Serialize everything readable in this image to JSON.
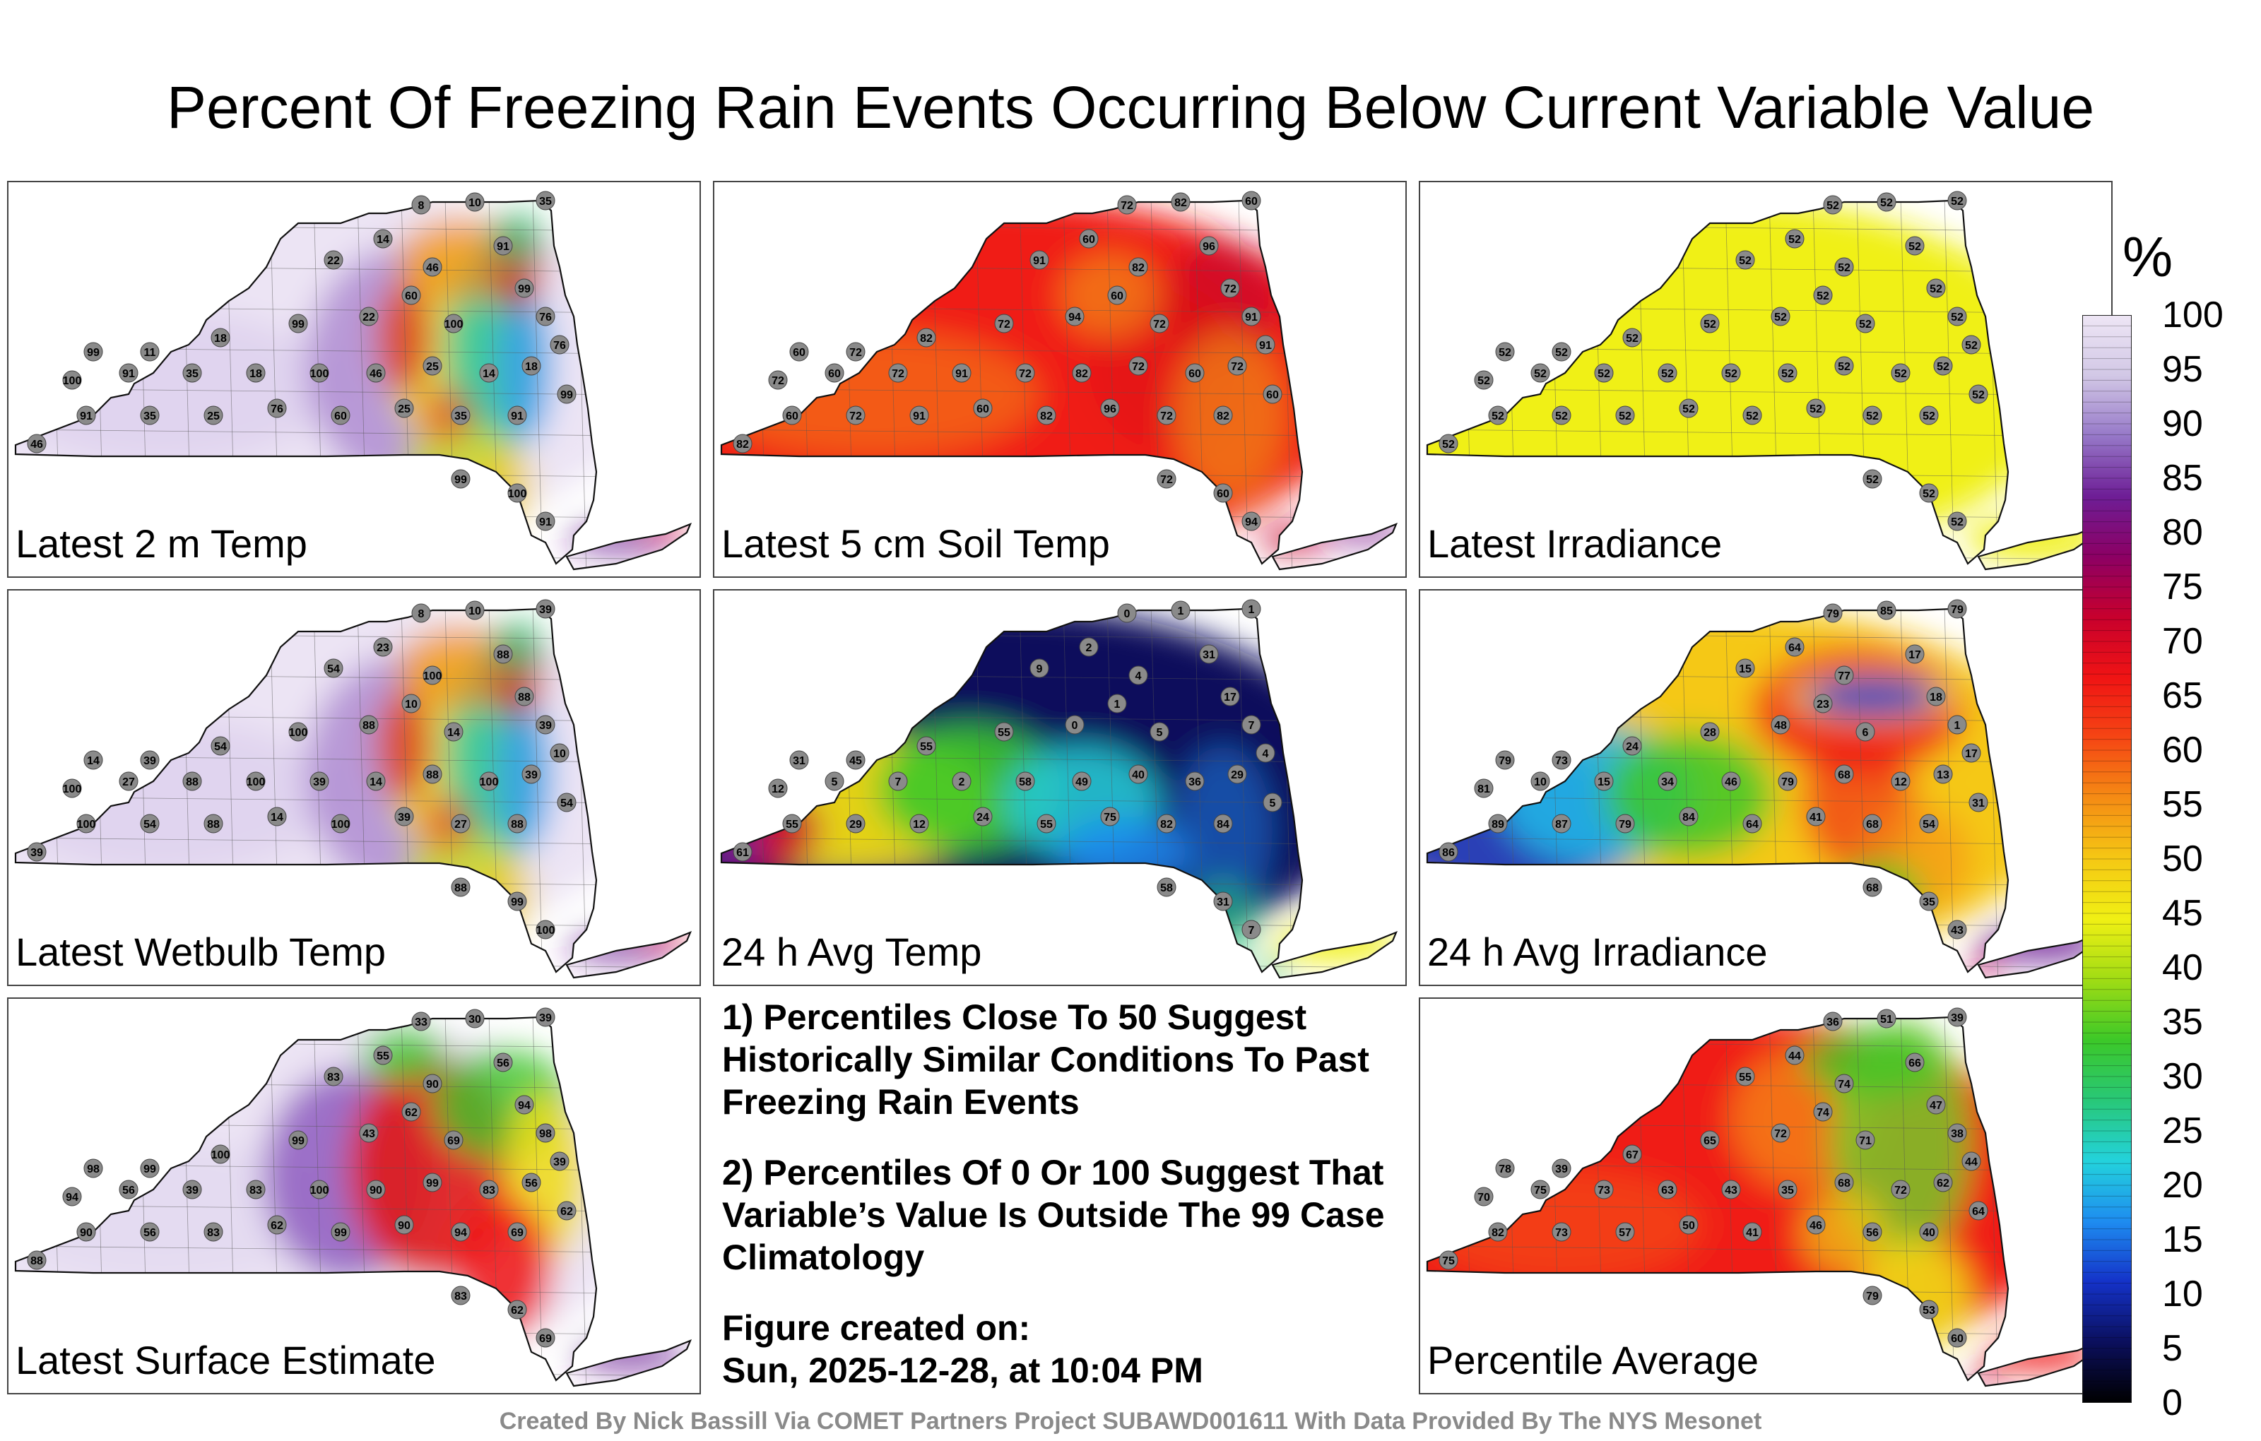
{
  "title": "Percent Of Freezing Rain Events Occurring Below Current Variable Value",
  "panels": [
    {
      "id": "t2m",
      "label": "Latest 2 m Temp",
      "scheme": "t2m",
      "stations": [
        "8",
        "10",
        "35",
        "14",
        "22",
        "46",
        "91",
        "99",
        "76",
        "100",
        "60",
        "22",
        "99",
        "18",
        "11",
        "99",
        "100",
        "91",
        "35",
        "18",
        "100",
        "46",
        "25",
        "14",
        "18",
        "76",
        "99",
        "91",
        "35",
        "25",
        "60",
        "76",
        "25",
        "35",
        "91",
        "46",
        "99",
        "100",
        "91"
      ]
    },
    {
      "id": "soil",
      "label": "Latest 5 cm Soil Temp",
      "scheme": "soil",
      "stations": [
        "72",
        "82",
        "60",
        "60",
        "91",
        "82",
        "96",
        "72",
        "91",
        "72",
        "60",
        "94",
        "72",
        "82",
        "72",
        "60",
        "72",
        "60",
        "72",
        "91",
        "72",
        "82",
        "72",
        "60",
        "72",
        "91",
        "60",
        "82",
        "72",
        "96",
        "82",
        "60",
        "91",
        "72",
        "60",
        "82",
        "72",
        "60",
        "94"
      ]
    },
    {
      "id": "irr",
      "label": "Latest Irradiance",
      "scheme": "irr",
      "stations": [
        "52",
        "52",
        "52",
        "52",
        "52",
        "52",
        "52",
        "52",
        "52",
        "52",
        "52",
        "52",
        "52",
        "52",
        "52",
        "52",
        "52",
        "52",
        "52",
        "52",
        "52",
        "52",
        "52",
        "52",
        "52",
        "52",
        "52",
        "52",
        "52",
        "52",
        "52",
        "52",
        "52",
        "52",
        "52",
        "52",
        "52",
        "52",
        "52"
      ]
    },
    {
      "id": "wb",
      "label": "Latest Wetbulb Temp",
      "scheme": "t2m",
      "stations": [
        "8",
        "10",
        "39",
        "23",
        "54",
        "100",
        "88",
        "88",
        "39",
        "14",
        "10",
        "88",
        "100",
        "54",
        "39",
        "14",
        "100",
        "27",
        "88",
        "100",
        "39",
        "14",
        "88",
        "100",
        "39",
        "10",
        "54",
        "88",
        "27",
        "39",
        "100",
        "14",
        "88",
        "54",
        "100",
        "39",
        "88",
        "99",
        "100"
      ]
    },
    {
      "id": "avgt",
      "label": "24 h Avg Temp",
      "scheme": "avgt",
      "stations": [
        "0",
        "1",
        "1",
        "2",
        "9",
        "4",
        "31",
        "17",
        "7",
        "5",
        "1",
        "0",
        "55",
        "55",
        "45",
        "31",
        "12",
        "5",
        "7",
        "2",
        "58",
        "49",
        "40",
        "36",
        "29",
        "4",
        "5",
        "84",
        "82",
        "75",
        "55",
        "24",
        "12",
        "29",
        "55",
        "61",
        "58",
        "31",
        "7"
      ]
    },
    {
      "id": "avgi",
      "label": "24 h Avg Irradiance",
      "scheme": "avgi",
      "stations": [
        "79",
        "85",
        "79",
        "64",
        "15",
        "77",
        "17",
        "18",
        "1",
        "6",
        "23",
        "48",
        "28",
        "24",
        "73",
        "79",
        "81",
        "10",
        "15",
        "34",
        "46",
        "79",
        "68",
        "12",
        "13",
        "17",
        "31",
        "54",
        "68",
        "41",
        "64",
        "84",
        "79",
        "87",
        "89",
        "86",
        "68",
        "35",
        "43"
      ]
    },
    {
      "id": "sfc",
      "label": "Latest Surface Estimate",
      "scheme": "sfc",
      "stations": [
        "33",
        "30",
        "39",
        "55",
        "83",
        "90",
        "56",
        "94",
        "98",
        "69",
        "62",
        "43",
        "99",
        "100",
        "99",
        "98",
        "94",
        "56",
        "39",
        "83",
        "100",
        "90",
        "99",
        "83",
        "56",
        "39",
        "62",
        "69",
        "94",
        "90",
        "99",
        "62",
        "83",
        "56",
        "90",
        "88",
        "83",
        "62",
        "69"
      ]
    },
    {
      "id": "pavg",
      "label": "Percentile Average",
      "scheme": "pavg",
      "stations": [
        "36",
        "51",
        "39",
        "44",
        "55",
        "74",
        "66",
        "47",
        "38",
        "71",
        "74",
        "72",
        "65",
        "67",
        "39",
        "78",
        "70",
        "75",
        "73",
        "63",
        "43",
        "35",
        "68",
        "72",
        "62",
        "44",
        "64",
        "40",
        "56",
        "46",
        "41",
        "50",
        "57",
        "73",
        "82",
        "75",
        "79",
        "53",
        "60"
      ]
    }
  ],
  "colorbar": {
    "unit": "%",
    "ticks": [
      "100",
      "95",
      "90",
      "85",
      "80",
      "75",
      "70",
      "65",
      "60",
      "55",
      "50",
      "45",
      "40",
      "35",
      "30",
      "25",
      "20",
      "15",
      "10",
      "5",
      "0"
    ],
    "stops": [
      "#000000",
      "#0b0f5c",
      "#1432c8",
      "#1e8cf0",
      "#23d2dc",
      "#28c878",
      "#3cc828",
      "#a0dc14",
      "#f0f014",
      "#f5c814",
      "#f58c14",
      "#f54614",
      "#f01414",
      "#c8002d",
      "#8c0064",
      "#6e1e96",
      "#9678c8",
      "#d2c8e6",
      "#eee6f5"
    ]
  },
  "notes": [
    "1) Percentiles Close To 50 Suggest Historically Similar Conditions To Past Freezing Rain Events",
    "2) Percentiles Of 0 Or 100 Suggest That Variable’s Value Is Outside The 99 Case Climatology",
    "Figure created on:",
    "Sun, 2025-12-28, at 10:04 PM"
  ],
  "footer": "Created By Nick Bassill Via COMET Partners Project SUBAWD001611 With Data Provided By The NYS Mesonet"
}
